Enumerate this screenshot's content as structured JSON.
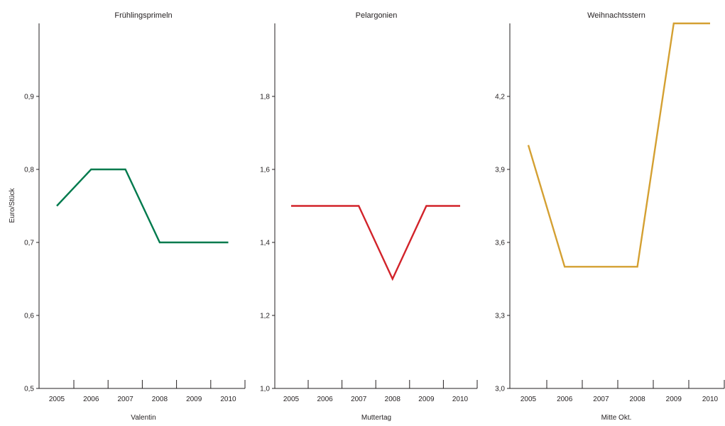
{
  "ylabel": "Euro/Stück",
  "chart_data": [
    {
      "type": "line",
      "title": "Frühlingsprimeln",
      "xlabel": "Valentin",
      "ylabel": "Euro/Stück",
      "categories": [
        "2005",
        "2006",
        "2007",
        "2008",
        "2009",
        "2010"
      ],
      "values": [
        0.75,
        0.8,
        0.8,
        0.7,
        0.7,
        0.7
      ],
      "ylim": [
        0.5,
        1.0
      ],
      "yticks": [
        "0,5",
        "0,6",
        "0,7",
        "0,8",
        "0,9"
      ],
      "color": "#007a4d",
      "grid": false
    },
    {
      "type": "line",
      "title": "Pelargonien",
      "xlabel": "Muttertag",
      "categories": [
        "2005",
        "2006",
        "2007",
        "2008",
        "2009",
        "2010"
      ],
      "values": [
        1.5,
        1.5,
        1.5,
        1.3,
        1.5,
        1.5
      ],
      "ylim": [
        1.0,
        2.0
      ],
      "yticks": [
        "1,0",
        "1,2",
        "1,4",
        "1,6",
        "1,8"
      ],
      "color": "#d2232a",
      "grid": false
    },
    {
      "type": "line",
      "title": "Weihnachtsstern",
      "xlabel": "Mitte Okt.",
      "categories": [
        "2005",
        "2006",
        "2007",
        "2008",
        "2009",
        "2010"
      ],
      "values": [
        4.0,
        3.5,
        3.5,
        3.5,
        4.5,
        4.5
      ],
      "ylim": [
        3.0,
        4.5
      ],
      "yticks": [
        "3,0",
        "3,3",
        "3,6",
        "3,9",
        "4,2"
      ],
      "color": "#d4a032",
      "grid": false
    }
  ]
}
